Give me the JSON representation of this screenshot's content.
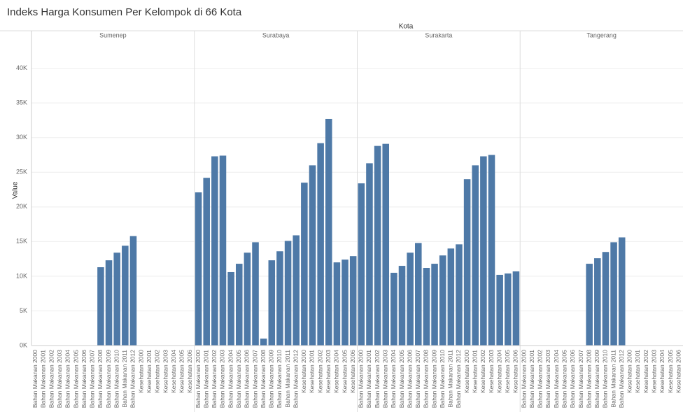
{
  "chart_data": {
    "type": "bar",
    "title": "Indeks Harga Konsumen Per Kelompok di 66 Kota",
    "x_label": "Kota",
    "y_label": "Value",
    "color": "#4e79a7",
    "grid": true,
    "categories": [
      "Bahan Makanan 2000",
      "Bahan Makanan 2001",
      "Bahan Makanan 2002",
      "Bahan Makanan 2003",
      "Bahan Makanan 2004",
      "Bahan Makanan 2005",
      "Bahan Makanan 2006",
      "Bahan Makanan 2007",
      "Bahan Makanan 2008",
      "Bahan Makanan 2009",
      "Bahan Makanan 2010",
      "Bahan Makanan 2011",
      "Bahan Makanan 2012",
      "Kesehatan 2000",
      "Kesehatan 2001",
      "Kesehatan 2002",
      "Kesehatan 2003",
      "Kesehatan 2004",
      "Kesehatan 2005",
      "Kesehatan 2006"
    ],
    "series": [
      {
        "name": "Sumenep",
        "values": [
          null,
          null,
          null,
          null,
          null,
          null,
          null,
          null,
          11300,
          12300,
          13400,
          14400,
          15800,
          null,
          null,
          null,
          null,
          null,
          null,
          null
        ]
      },
      {
        "name": "Surabaya",
        "values": [
          22100,
          24200,
          27300,
          27400,
          10600,
          11800,
          13400,
          14900,
          1000,
          12300,
          13600,
          15100,
          15900,
          23500,
          26000,
          29200,
          32700,
          12000,
          12400,
          12900
        ]
      },
      {
        "name": "Surakarta",
        "values": [
          23400,
          26300,
          28800,
          29100,
          10500,
          11500,
          13400,
          14800,
          11200,
          11800,
          13000,
          14000,
          14600,
          24000,
          26000,
          27300,
          27500,
          10200,
          10400,
          10700
        ]
      },
      {
        "name": "Tangerang",
        "values": [
          null,
          null,
          null,
          null,
          null,
          null,
          null,
          null,
          11800,
          12600,
          13500,
          14900,
          15600,
          null,
          null,
          null,
          null,
          null,
          null,
          null
        ]
      }
    ],
    "ylim": [
      0,
      44000
    ],
    "yticks": [
      {
        "value": 0,
        "label": "0K"
      },
      {
        "value": 5000,
        "label": "5K"
      },
      {
        "value": 10000,
        "label": "10K"
      },
      {
        "value": 15000,
        "label": "15K"
      },
      {
        "value": 20000,
        "label": "20K"
      },
      {
        "value": 25000,
        "label": "25K"
      },
      {
        "value": 30000,
        "label": "30K"
      },
      {
        "value": 35000,
        "label": "35K"
      },
      {
        "value": 40000,
        "label": "40K"
      }
    ]
  }
}
